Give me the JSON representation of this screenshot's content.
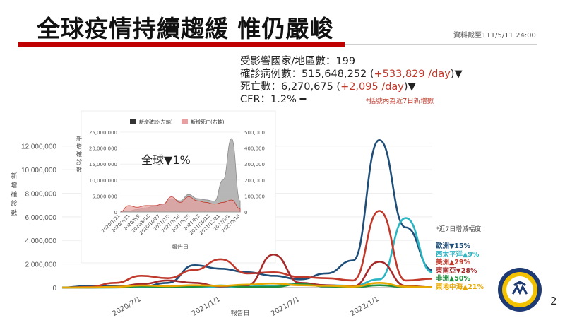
{
  "page": {
    "title": "全球疫情持續趨緩 惟仍嚴峻",
    "data_date": "資料截至111/5/11 24:00",
    "page_number": "2"
  },
  "stats": {
    "affected_label": "受影響國家/地區數：199",
    "cases_label": "確診病例數：515,648,252 (",
    "cases_daily": "+533,829 /day",
    "cases_suffix": ")▼",
    "deaths_label": "死亡數：6,270,675 (",
    "deaths_daily": "+2,095 /day",
    "deaths_suffix": ")▼",
    "cfr_label": "CFR：1.2% ━",
    "footnote": "*括號內為近7日新增數"
  },
  "colors": {
    "title_bar": "#c00000",
    "highlight_red": "#c0392b"
  },
  "legend_note": "*近7日增減幅度",
  "regions": [
    {
      "name": "歐洲▼15%",
      "color": "#1f4e79"
    },
    {
      "name": "西太平洋▲9%",
      "color": "#2bb5c2"
    },
    {
      "name": "美洲▲29%",
      "color": "#c0392b"
    },
    {
      "name": "東南亞▼28%",
      "color": "#a52a2a"
    },
    {
      "name": "非洲▲50%",
      "color": "#1e8e3e"
    },
    {
      "name": "東地中海▲21%",
      "color": "#e6a700"
    }
  ],
  "chart_data": [
    {
      "type": "line",
      "xlabel": "報告日",
      "ylabel": "新增確診數",
      "ylim": [
        0,
        13000000
      ],
      "yticks": [
        "0",
        "2,000,000",
        "4,000,000",
        "6,000,000",
        "8,000,000",
        "10,000,000",
        "12,000,000"
      ],
      "x_tick_labels": [
        "2020/7/1",
        "2021/1/1",
        "2021/7/1",
        "2022/1/1"
      ],
      "x": [
        "2020/1",
        "2020/3",
        "2020/5",
        "2020/7",
        "2020/9",
        "2020/11",
        "2021/1",
        "2021/3",
        "2021/5",
        "2021/7",
        "2021/9",
        "2021/11",
        "2022/1",
        "2022/3",
        "2022/5"
      ],
      "series": [
        {
          "name": "歐洲",
          "color": "#1f4e79",
          "values": [
            0,
            150000,
            100000,
            80000,
            400000,
            1900000,
            1600000,
            1300000,
            1000000,
            700000,
            1200000,
            2300000,
            12500000,
            5100000,
            1500000
          ]
        },
        {
          "name": "西太平洋",
          "color": "#2bb5c2",
          "values": [
            0,
            10000,
            10000,
            20000,
            30000,
            60000,
            80000,
            80000,
            150000,
            350000,
            200000,
            150000,
            700000,
            5900000,
            1300000
          ]
        },
        {
          "name": "美洲",
          "color": "#c0392b",
          "values": [
            0,
            50000,
            400000,
            1000000,
            800000,
            1500000,
            2400000,
            1200000,
            1300000,
            900000,
            800000,
            600000,
            6500000,
            600000,
            750000
          ]
        },
        {
          "name": "東南亞",
          "color": "#a52a2a",
          "values": [
            0,
            0,
            50000,
            300000,
            600000,
            400000,
            100000,
            200000,
            2800000,
            400000,
            200000,
            100000,
            2200000,
            150000,
            30000
          ]
        },
        {
          "name": "非洲",
          "color": "#1e8e3e",
          "values": [
            0,
            0,
            10000,
            100000,
            50000,
            80000,
            180000,
            50000,
            60000,
            300000,
            100000,
            30000,
            200000,
            40000,
            20000
          ]
        },
        {
          "name": "東地中海",
          "color": "#e6a700",
          "values": [
            0,
            10000,
            60000,
            180000,
            120000,
            200000,
            150000,
            250000,
            350000,
            200000,
            150000,
            80000,
            400000,
            80000,
            30000
          ]
        }
      ]
    },
    {
      "type": "area",
      "title": "全球▼1%",
      "ylim_left": [
        0,
        25000000
      ],
      "ylim_right": [
        0,
        500000
      ],
      "yticks_left": [
        "0",
        "5,000,000",
        "10,000,000",
        "15,000,000",
        "20,000,000",
        "25,000,000"
      ],
      "yticks_right": [
        "0",
        "100,000",
        "200,000",
        "300,000",
        "400,000",
        "500,000"
      ],
      "ylabel": "新增確診數",
      "xlabel": "報告日",
      "x_tick_labels": [
        "2020/1/21",
        "2020/3/31",
        "2020/6/9",
        "2020/8/18",
        "2020/10/27",
        "2021/1/5",
        "2021/3/16",
        "2021/5/25",
        "2021/8/3",
        "2021/10/12",
        "2021/12/21",
        "2022/3/1",
        "2022/5/10"
      ],
      "legend": [
        "新增確診(左軸)",
        "新增死亡(右軸)"
      ],
      "legend_position": "top",
      "series": [
        {
          "name": "新增確診(左軸)",
          "axis": "left",
          "color": "#a9a9a9",
          "values": [
            0,
            300000,
            800000,
            1300000,
            1800000,
            2500000,
            4200000,
            3500000,
            5500000,
            4200000,
            3800000,
            3400000,
            10000000,
            23000000,
            3500000
          ]
        },
        {
          "name": "新增死亡(右軸)",
          "axis": "right",
          "color": "#e8a0a0",
          "values": [
            0,
            40000,
            30000,
            40000,
            40000,
            50000,
            95000,
            60000,
            95000,
            70000,
            60000,
            50000,
            60000,
            75000,
            20000
          ]
        }
      ]
    }
  ]
}
